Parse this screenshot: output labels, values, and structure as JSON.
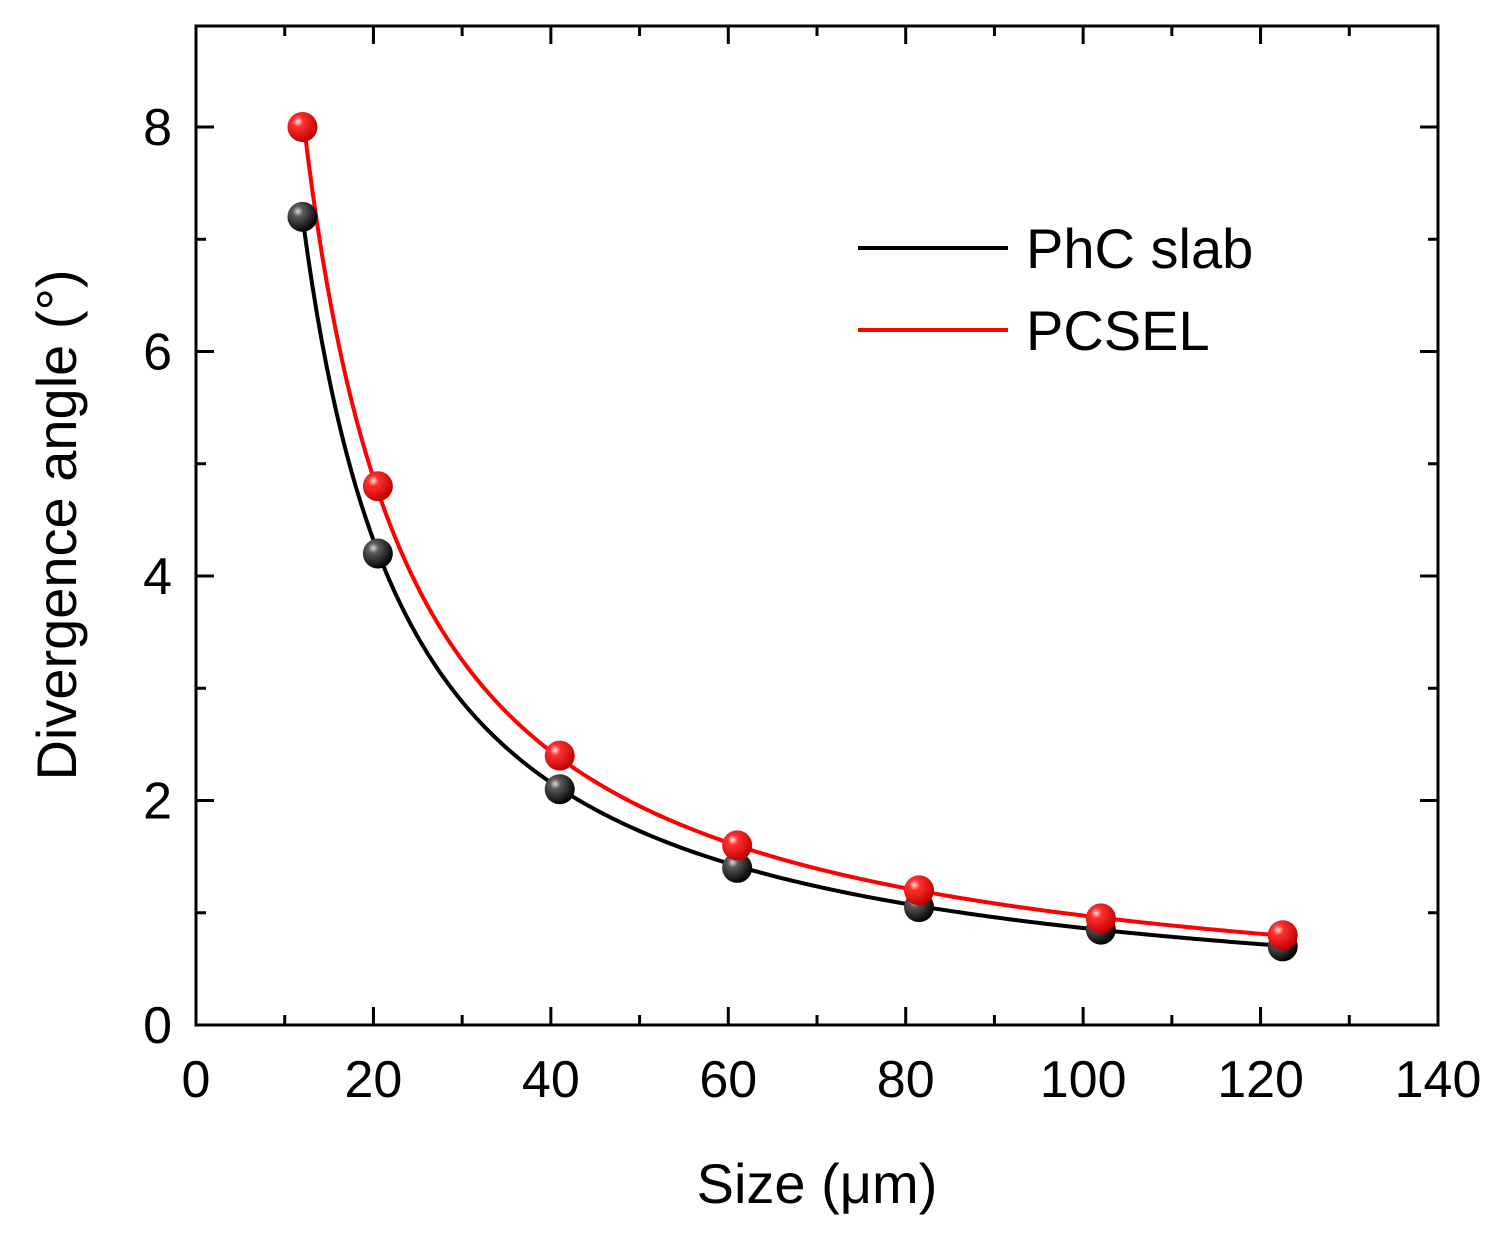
{
  "chart_data": {
    "type": "scatter",
    "title": "",
    "xlabel": "Size (μm)",
    "ylabel": "Divergence angle (°)",
    "xlim": [
      0,
      140
    ],
    "ylim": [
      0,
      8.9
    ],
    "xticks": [
      0,
      20,
      40,
      60,
      80,
      100,
      120,
      140
    ],
    "yticks": [
      0,
      2,
      4,
      6,
      8
    ],
    "x_minor_step": 10,
    "y_minor_step": 1,
    "grid": false,
    "legend_position": "top-right",
    "fit_lines": true,
    "series": [
      {
        "name": "PhC slab",
        "color": "#000000",
        "x": [
          12,
          20.5,
          41,
          61,
          81.5,
          102,
          122.5
        ],
        "y": [
          7.2,
          4.2,
          2.1,
          1.4,
          1.05,
          0.85,
          0.7
        ],
        "fit_constant": 86.4
      },
      {
        "name": "PCSEL",
        "color": "#ff0000",
        "x": [
          12,
          20.5,
          41,
          61,
          81.5,
          102,
          122.5
        ],
        "y": [
          8.0,
          4.8,
          2.4,
          1.6,
          1.2,
          0.95,
          0.8
        ],
        "fit_constant": 97.5
      }
    ]
  }
}
